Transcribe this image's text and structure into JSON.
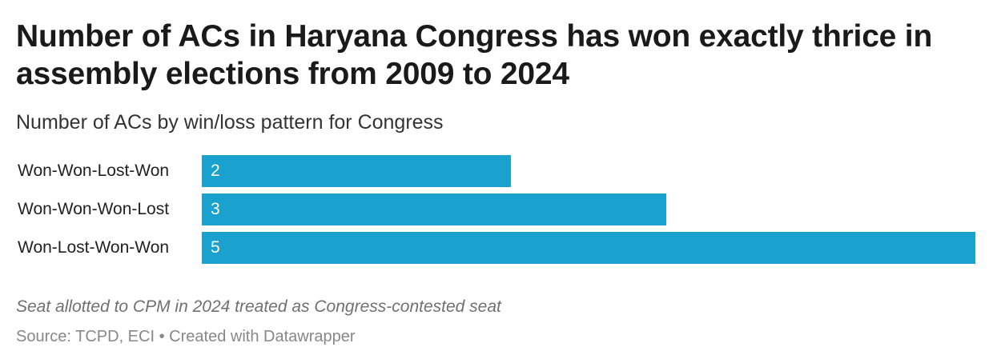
{
  "chart_data": {
    "type": "bar",
    "orientation": "horizontal",
    "title": "Number of ACs in Haryana Congress has won exactly thrice in assembly elections from 2009 to 2024",
    "subtitle": "Number of ACs by win/loss pattern for Congress",
    "categories": [
      "Won-Won-Lost-Won",
      "Won-Won-Won-Lost",
      "Won-Lost-Won-Won"
    ],
    "values": [
      2,
      3,
      5
    ],
    "xlim": [
      0,
      5
    ],
    "bar_color": "#1aa1cd",
    "grid": false,
    "legend": "none"
  },
  "notes": "Seat allotted to CPM in 2024 treated as Congress-contested seat",
  "footer": {
    "source": "Source: TCPD, ECI",
    "separator": "•",
    "credit": "Created with Datawrapper"
  }
}
